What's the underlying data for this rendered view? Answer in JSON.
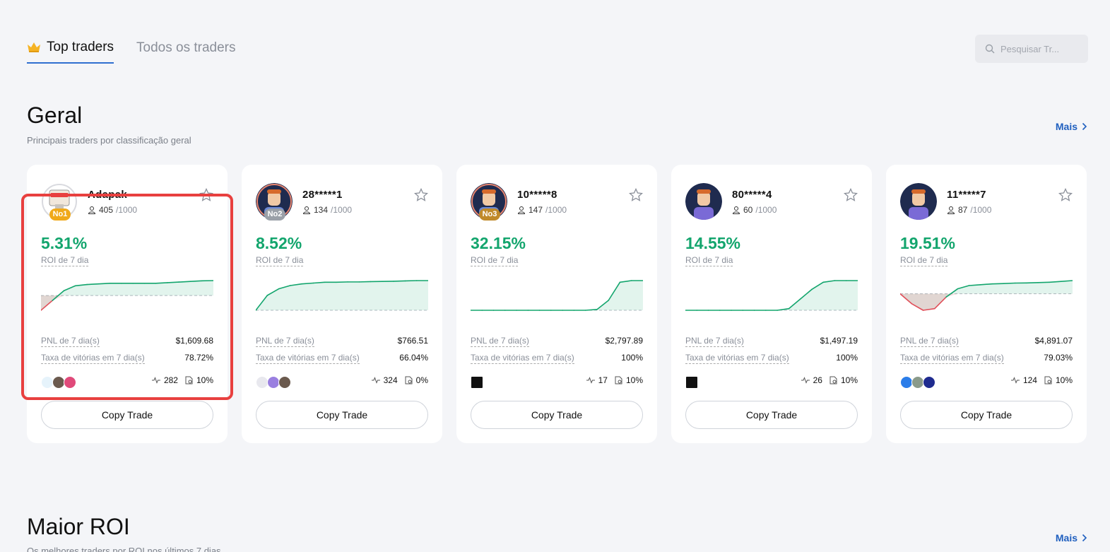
{
  "tabs": {
    "top": "Top traders",
    "all": "Todos os traders"
  },
  "search": {
    "placeholder": "Pesquisar Tr..."
  },
  "sections": {
    "geral": {
      "title": "Geral",
      "subtitle": "Principais traders por classificação geral",
      "more": "Mais"
    },
    "roi": {
      "title": "Maior ROI",
      "subtitle": "Os melhores traders por ROI nos últimos 7 dias",
      "more": "Mais"
    }
  },
  "labels": {
    "roi": "ROI de 7 dia",
    "pnl": "PNL de 7 dia(s)",
    "winrate": "Taxa de vitórias em 7 dia(s)",
    "copy": "Copy Trade"
  },
  "colors": {
    "profit": "#13a56d",
    "loss": "#e0505a",
    "accent": "#2f6fd0",
    "highlight": "#e8403f"
  },
  "traders": [
    {
      "name": "Adapak",
      "rank": "No1",
      "followers": "405",
      "max": "/1000",
      "roi": "5.31%",
      "roi_value": 5.31,
      "pnl": "$1,609.68",
      "winrate": "78.72%",
      "trades": "282",
      "share": "10%",
      "series": [
        -1.2,
        -0.4,
        0.4,
        0.8,
        0.9,
        0.95,
        1.0,
        1.0,
        1.0,
        1.0,
        1.0,
        1.05,
        1.1,
        1.15,
        1.2,
        1.22
      ]
    },
    {
      "name": "28*****1",
      "rank": "No2",
      "followers": "134",
      "max": "/1000",
      "roi": "8.52%",
      "roi_value": 8.52,
      "pnl": "$766.51",
      "winrate": "66.04%",
      "trades": "324",
      "share": "0%",
      "series": [
        0,
        0.9,
        1.3,
        1.5,
        1.6,
        1.65,
        1.7,
        1.7,
        1.72,
        1.72,
        1.74,
        1.75,
        1.76,
        1.78,
        1.8,
        1.8
      ]
    },
    {
      "name": "10*****8",
      "rank": "No3",
      "followers": "147",
      "max": "/1000",
      "roi": "32.15%",
      "roi_value": 32.15,
      "pnl": "$2,797.89",
      "winrate": "100%",
      "trades": "17",
      "share": "10%",
      "series": [
        0,
        0,
        0,
        0,
        0,
        0,
        0,
        0,
        0,
        0,
        0,
        0.05,
        0.6,
        1.7,
        1.8,
        1.8
      ]
    },
    {
      "name": "80*****4",
      "rank": "",
      "followers": "60",
      "max": "/1000",
      "roi": "14.55%",
      "roi_value": 14.55,
      "pnl": "$1,497.19",
      "winrate": "100%",
      "trades": "26",
      "share": "10%",
      "series": [
        0,
        0,
        0,
        0,
        0,
        0,
        0,
        0,
        0,
        0.1,
        0.7,
        1.3,
        1.75,
        1.85,
        1.85,
        1.85
      ]
    },
    {
      "name": "11*****7",
      "rank": "",
      "followers": "87",
      "max": "/1000",
      "roi": "19.51%",
      "roi_value": 19.51,
      "pnl": "$4,891.07",
      "winrate": "79.03%",
      "trades": "124",
      "share": "10%",
      "series": [
        0,
        -0.6,
        -1.0,
        -0.9,
        -0.2,
        0.3,
        0.5,
        0.55,
        0.6,
        0.62,
        0.65,
        0.66,
        0.68,
        0.7,
        0.75,
        0.8
      ]
    }
  ]
}
